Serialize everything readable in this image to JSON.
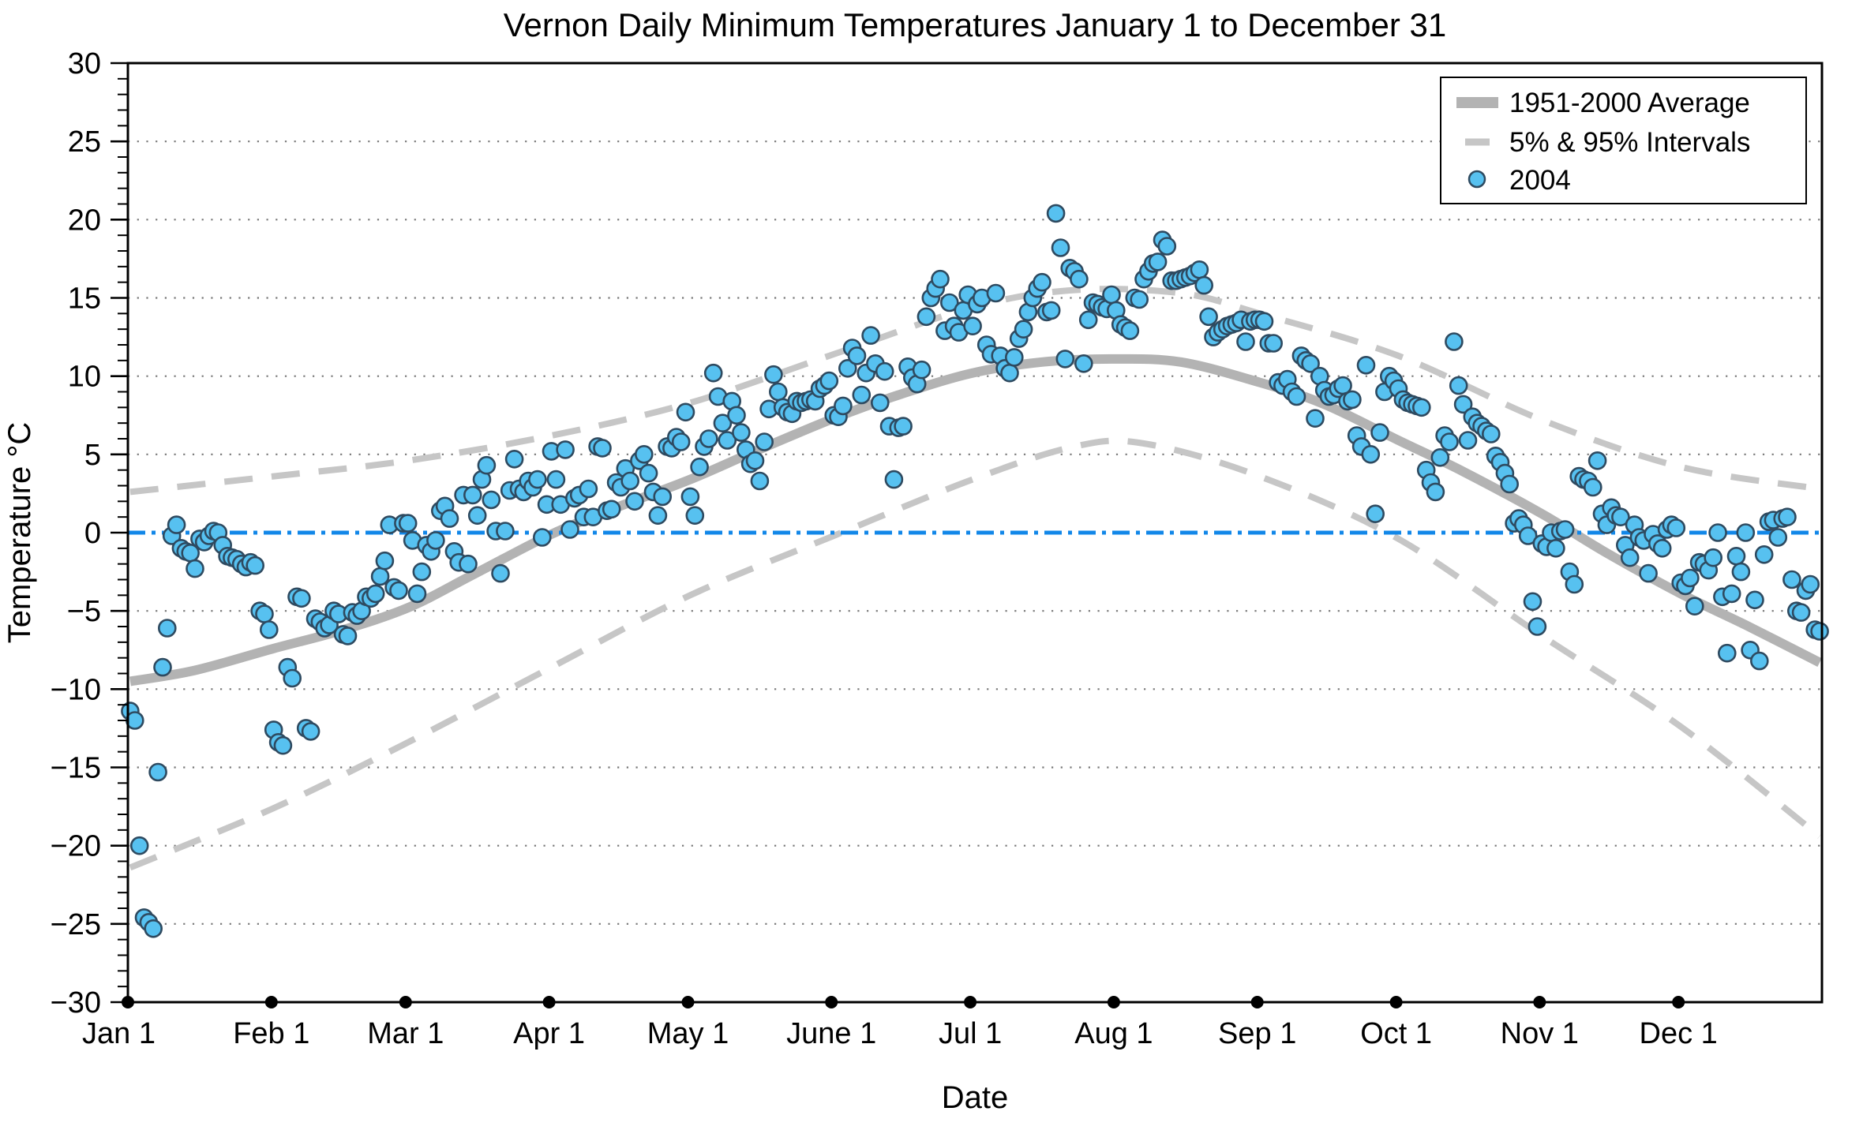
{
  "legend": {
    "position": "top-right",
    "items": [
      {
        "label": "1951-2000 Average",
        "swatch": "thick-gray-line"
      },
      {
        "label": "5% & 95% Intervals",
        "swatch": "gray-dash"
      },
      {
        "label": "2004",
        "swatch": "blue-circle"
      }
    ]
  },
  "chart_data": {
    "type": "scatter",
    "title": "Vernon Daily Minimum Temperatures January 1 to December 31",
    "xlabel": "Date",
    "ylabel": "Temperature °C",
    "ylim": [
      -30,
      30
    ],
    "ytick_step": 5,
    "y_minor_step": 1,
    "grid": "horizontal-dotted-at-major-ticks",
    "legend_position": "top-right",
    "days_in_year": 366,
    "x_tick_labels": [
      "Jan 1",
      "Feb 1",
      "Mar 1",
      "Apr 1",
      "May 1",
      "June 1",
      "Jul 1",
      "Aug 1",
      "Sep 1",
      "Oct 1",
      "Nov 1",
      "Dec 1"
    ],
    "month_start_day_of_year": [
      0,
      31,
      60,
      91,
      121,
      152,
      182,
      213,
      244,
      274,
      305,
      335
    ],
    "reference_line": {
      "y": 0,
      "style": "dash-dot",
      "color": "#1287E8"
    },
    "series": [
      {
        "name": "2004",
        "type": "scatter",
        "unit": "degC",
        "values": [
          -11.4,
          -12,
          -20,
          -24.6,
          -24.9,
          -25.3,
          -15.3,
          -8.6,
          -6.1,
          -0.2,
          0.5,
          -1,
          -1.2,
          -1.3,
          -2.3,
          -0.4,
          -0.6,
          -0.2,
          0.1,
          0,
          -0.8,
          -1.5,
          -1.6,
          -1.7,
          -2,
          -2.2,
          -1.9,
          -2.1,
          -5,
          -5.2,
          -6.2,
          -12.6,
          -13.4,
          -13.6,
          -8.6,
          -9.3,
          -4.1,
          -4.2,
          -12.5,
          -12.7,
          -5.5,
          -5.7,
          -6.1,
          -5.9,
          -5,
          -5.2,
          -6.5,
          -6.6,
          -5.1,
          -5.3,
          -5,
          -4.1,
          -4.2,
          -3.9,
          -2.8,
          -1.8,
          0.5,
          -3.5,
          -3.7,
          0.6,
          0.6,
          -0.5,
          -3.9,
          -2.5,
          -0.8,
          -1.2,
          -0.5,
          1.4,
          1.7,
          0.9,
          -1.2,
          -1.9,
          2.4,
          -2,
          2.4,
          1.1,
          3.4,
          4.3,
          2.1,
          0.1,
          -2.6,
          0.1,
          2.7,
          4.7,
          2.8,
          2.6,
          3.3,
          2.9,
          3.4,
          -0.3,
          1.8,
          5.2,
          3.4,
          1.8,
          5.3,
          0.2,
          2.2,
          2.4,
          1,
          2.8,
          1,
          5.5,
          5.4,
          1.4,
          1.5,
          3.2,
          2.9,
          4.1,
          3.3,
          2,
          4.6,
          5,
          3.8,
          2.6,
          1.1,
          2.3,
          5.5,
          5.4,
          6.1,
          5.8,
          7.7,
          2.3,
          1.1,
          4.2,
          5.5,
          6,
          10.2,
          8.7,
          7,
          5.9,
          8.4,
          7.5,
          6.4,
          5.3,
          4.4,
          4.6,
          3.3,
          5.8,
          7.9,
          10.1,
          9,
          8,
          7.7,
          7.6,
          8.4,
          8.3,
          8.4,
          8.5,
          8.4,
          9.2,
          9.4,
          9.7,
          7.5,
          7.4,
          8.1,
          10.5,
          11.8,
          11.3,
          8.8,
          10.2,
          12.6,
          10.8,
          8.3,
          10.3,
          6.8,
          3.4,
          6.7,
          6.8,
          10.6,
          9.9,
          9.5,
          10.4,
          13.8,
          15,
          15.6,
          16.2,
          12.9,
          14.7,
          13.2,
          12.8,
          14.2,
          15.2,
          13.2,
          14.6,
          15,
          12,
          11.4,
          15.3,
          11.3,
          10.5,
          10.2,
          11.2,
          12.4,
          13,
          14.1,
          15,
          15.6,
          16,
          14.1,
          14.2,
          20.4,
          18.2,
          11.1,
          16.9,
          16.7,
          16.2,
          10.8,
          13.6,
          14.7,
          14.6,
          14.4,
          14.3,
          15.2,
          14.2,
          13.3,
          13.1,
          12.9,
          15,
          14.9,
          16.2,
          16.7,
          17.2,
          17.3,
          18.7,
          18.3,
          16.1,
          16.1,
          16.2,
          16.3,
          16.4,
          16.6,
          16.8,
          15.8,
          13.8,
          12.5,
          12.8,
          13,
          13.2,
          13.3,
          13.4,
          13.6,
          12.2,
          13.5,
          13.6,
          13.6,
          13.5,
          12.1,
          12.1,
          9.6,
          9.4,
          9.8,
          9,
          8.7,
          11.3,
          11,
          10.8,
          7.3,
          10,
          9.1,
          8.7,
          8.8,
          9.2,
          9.4,
          8.4,
          8.5,
          6.2,
          5.5,
          10.7,
          5,
          1.2,
          6.4,
          9,
          10,
          9.7,
          9.2,
          8.5,
          8.3,
          8.2,
          8.1,
          8,
          4,
          3.2,
          2.6,
          4.8,
          6.2,
          5.8,
          12.2,
          9.4,
          8.2,
          5.9,
          7.4,
          7,
          6.8,
          6.5,
          6.3,
          4.9,
          4.5,
          3.8,
          3.1,
          0.6,
          0.9,
          0.5,
          -0.2,
          -4.4,
          -6,
          -0.7,
          -0.9,
          0,
          -1,
          0.1,
          0.2,
          -2.5,
          -3.3,
          3.6,
          3.4,
          3.3,
          2.9,
          4.6,
          1.2,
          0.5,
          1.6,
          1.1,
          1,
          -0.8,
          -1.6,
          0.5,
          -0.3,
          -0.5,
          -2.6,
          -0.1,
          -0.7,
          -1,
          0.2,
          0.5,
          0.3,
          -3.2,
          -3.4,
          -2.9,
          -4.7,
          -1.9,
          -2,
          -2.4,
          -1.6,
          0,
          -4.1,
          -7.7,
          -3.9,
          -1.5,
          -2.5,
          0,
          -7.5,
          -4.3,
          -8.2,
          -1.4,
          0.7,
          0.8,
          -0.3,
          0.9,
          1,
          -3,
          -5,
          -5.1,
          -3.7,
          -3.3,
          -6.2,
          -6.3
        ]
      },
      {
        "name": "1951-2000 Average",
        "type": "line",
        "anchors": [
          [
            1,
            -9.5
          ],
          [
            15,
            -8.8
          ],
          [
            32,
            -7.4
          ],
          [
            46,
            -6.3
          ],
          [
            61,
            -4.8
          ],
          [
            75,
            -2.7
          ],
          [
            92,
            -0.1
          ],
          [
            106,
            1.6
          ],
          [
            122,
            3.4
          ],
          [
            136,
            5.2
          ],
          [
            153,
            7.3
          ],
          [
            167,
            8.8
          ],
          [
            183,
            10.2
          ],
          [
            198,
            10.9
          ],
          [
            213,
            11.1
          ],
          [
            228,
            10.9
          ],
          [
            245,
            9.6
          ],
          [
            259,
            8.2
          ],
          [
            275,
            5.9
          ],
          [
            289,
            3.9
          ],
          [
            306,
            1.2
          ],
          [
            320,
            -1.3
          ],
          [
            336,
            -3.9
          ],
          [
            350,
            -5.9
          ],
          [
            366,
            -8.3
          ]
        ]
      },
      {
        "name": "95% Interval",
        "type": "dashed-line",
        "anchors": [
          [
            1,
            2.6
          ],
          [
            32,
            3.6
          ],
          [
            61,
            4.6
          ],
          [
            92,
            6.2
          ],
          [
            122,
            8.3
          ],
          [
            153,
            11.4
          ],
          [
            183,
            14.4
          ],
          [
            205,
            15.5
          ],
          [
            228,
            15.3
          ],
          [
            245,
            14
          ],
          [
            275,
            11.3
          ],
          [
            306,
            7.2
          ],
          [
            336,
            4.2
          ],
          [
            366,
            2.8
          ]
        ]
      },
      {
        "name": "5% Interval",
        "type": "dashed-line",
        "anchors": [
          [
            1,
            -21.4
          ],
          [
            32,
            -17.6
          ],
          [
            61,
            -13.4
          ],
          [
            92,
            -8.6
          ],
          [
            122,
            -4
          ],
          [
            153,
            -0.2
          ],
          [
            183,
            3.4
          ],
          [
            205,
            5.5
          ],
          [
            220,
            5.7
          ],
          [
            245,
            3.6
          ],
          [
            275,
            -0.4
          ],
          [
            306,
            -6.6
          ],
          [
            336,
            -12.4
          ],
          [
            366,
            -19.4
          ]
        ]
      }
    ],
    "colors": {
      "scatter_fill": "#57C1F0",
      "scatter_edge": "#2E4A60",
      "average_line": "#B3B3B3",
      "interval_line": "#C6C6C6",
      "zero_line": "#1287E8",
      "grid": "#777777",
      "axis": "#000000",
      "background": "#FFFFFF"
    }
  }
}
